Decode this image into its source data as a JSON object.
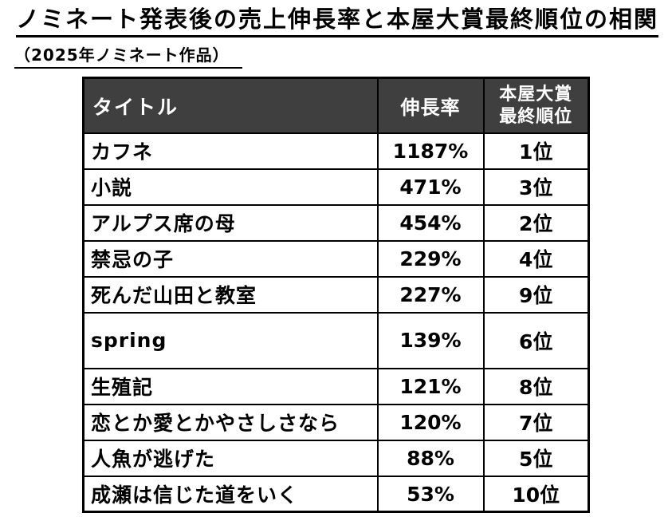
{
  "page": {
    "title": "ノミネート発表後の売上伸長率と本屋大賞最終順位の相関",
    "subtitle": "（2025年ノミネート作品）"
  },
  "table": {
    "columns": {
      "title": "タイトル",
      "growth": "伸長率",
      "rank_line1": "本屋大賞",
      "rank_line2": "最終順位"
    },
    "rows": [
      {
        "title": "カフネ",
        "growth": "1187%",
        "rank": "1位"
      },
      {
        "title": "小説",
        "growth": "471%",
        "rank": "3位"
      },
      {
        "title": "アルプス席の母",
        "growth": "454%",
        "rank": "2位"
      },
      {
        "title": "禁忌の子",
        "growth": "229%",
        "rank": "4位"
      },
      {
        "title": "死んだ山田と教室",
        "growth": "227%",
        "rank": "9位"
      },
      {
        "title": "spring",
        "growth": "139%",
        "rank": "6位"
      },
      {
        "title": "生殖記",
        "growth": "121%",
        "rank": "8位"
      },
      {
        "title": "恋とか愛とかやさしさなら",
        "growth": "120%",
        "rank": "7位"
      },
      {
        "title": "人魚が逃げた",
        "growth": "88%",
        "rank": "5位"
      },
      {
        "title": "成瀬は信じた道をいく",
        "growth": "53%",
        "rank": "10位"
      }
    ]
  },
  "colors": {
    "header_bg": "#3f3f3f",
    "header_text": "#ffffff",
    "body_text": "#000000",
    "border": "#000000",
    "background": "#ffffff"
  },
  "chart_data": {
    "type": "table",
    "title": "ノミネート発表後の売上伸長率と本屋大賞最終順位の相関",
    "subtitle": "（2025年ノミネート作品）",
    "columns": [
      "タイトル",
      "伸長率",
      "本屋大賞最終順位"
    ],
    "rows": [
      [
        "カフネ",
        "1187%",
        "1位"
      ],
      [
        "小説",
        "471%",
        "3位"
      ],
      [
        "アルプス席の母",
        "454%",
        "2位"
      ],
      [
        "禁忌の子",
        "229%",
        "4位"
      ],
      [
        "死んだ山田と教室",
        "227%",
        "9位"
      ],
      [
        "spring",
        "139%",
        "6位"
      ],
      [
        "生殖記",
        "121%",
        "8位"
      ],
      [
        "恋とか愛とかやさしさなら",
        "120%",
        "7位"
      ],
      [
        "人魚が逃げた",
        "88%",
        "5位"
      ],
      [
        "成瀬は信じた道をいく",
        "53%",
        "10位"
      ]
    ],
    "growth_percent": [
      1187,
      471,
      454,
      229,
      227,
      139,
      121,
      120,
      88,
      53
    ],
    "final_rank": [
      1,
      3,
      2,
      4,
      9,
      6,
      8,
      7,
      5,
      10
    ]
  }
}
